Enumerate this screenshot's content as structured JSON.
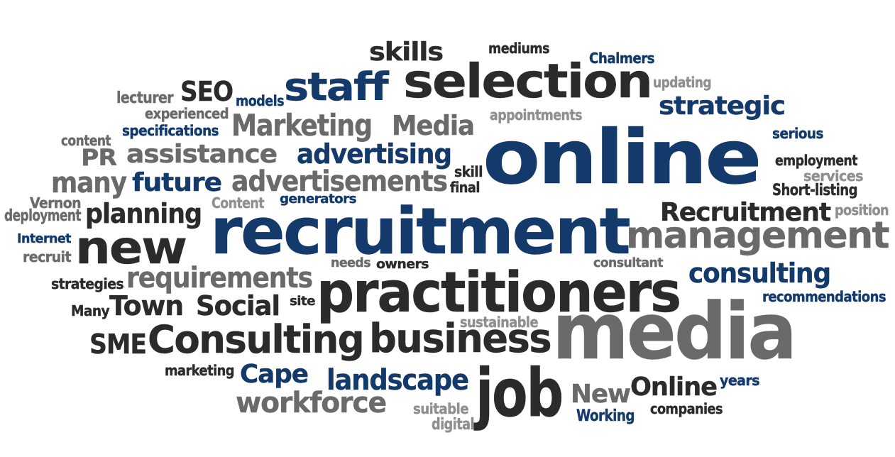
{
  "colors": {
    "dark": "#2b2b2d",
    "grey": "#6a6a6a",
    "light_grey": "#8f8f8f",
    "navy": "#143a6b",
    "background": "#ffffff"
  },
  "words": {
    "online": "online",
    "recruitment": "recruitment",
    "media": "media",
    "practitioners": "practitioners",
    "selection": "selection",
    "new": "new",
    "management": "management",
    "job": "job",
    "consulting_cap": "Consulting",
    "business": "business",
    "staff": "staff",
    "advertisements": "advertisements",
    "Recruitment_cap": "Recruitment",
    "requirements": "requirements",
    "assistance": "assistance",
    "advertising": "advertising",
    "future": "future",
    "planning": "planning",
    "many": "many",
    "Marketing": "Marketing",
    "Media_cap": "Media",
    "skills": "skills",
    "SEO": "SEO",
    "strategic": "strategic",
    "consulting": "consulting",
    "landscape": "landscape",
    "workforce": "workforce",
    "Cape": "Cape",
    "Online_cap": "Online",
    "New_cap": "New",
    "Town": "Town",
    "Social": "Social",
    "SME": "SME",
    "PR": "PR",
    "mediums": "mediums",
    "Chalmers": "Chalmers",
    "updating": "updating",
    "lecturer": "lecturer",
    "models": "models",
    "experienced": "experienced",
    "appointments": "appointments",
    "specifications": "specifications",
    "content": "content",
    "serious": "serious",
    "employment": "employment",
    "services": "services",
    "Short_listing": "Short-listing",
    "skill": "skill",
    "final": "final",
    "Vernon": "Vernon",
    "Content_cap": "Content",
    "generators": "generators",
    "deployment": "deployment",
    "position": "position",
    "Internet": "Internet",
    "recruit": "recruit",
    "needs": "needs",
    "owners": "owners",
    "consultant": "consultant",
    "strategies": "strategies",
    "recommendations": "recommendations",
    "site": "site",
    "Many": "Many",
    "sustainable": "sustainable",
    "marketing": "marketing",
    "years": "years",
    "suitable": "suitable",
    "digital": "digital",
    "Working": "Working",
    "companies": "companies"
  }
}
